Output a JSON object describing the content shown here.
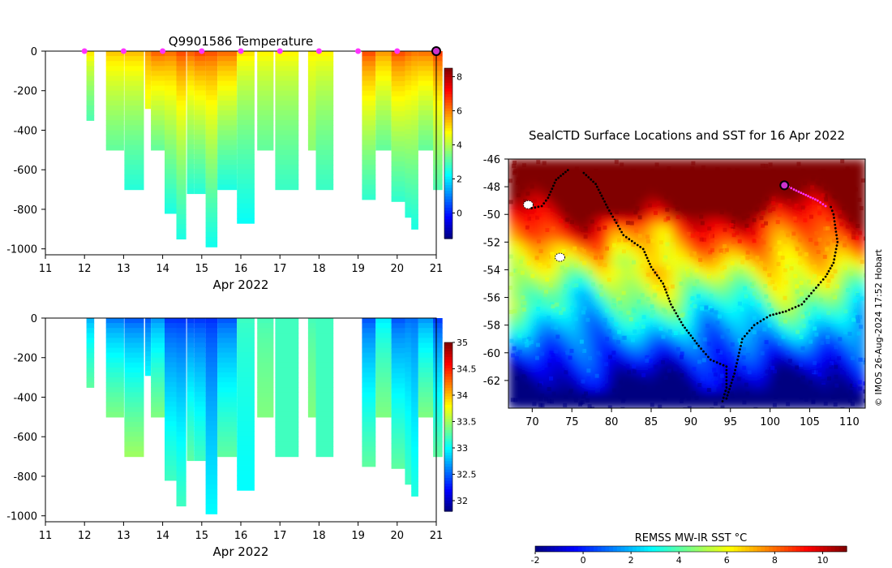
{
  "chart_data": [
    {
      "id": "temperature",
      "type": "heatmap",
      "title": "Q9901586  Temperature",
      "xlabel": "Apr 2022",
      "xlim": [
        11,
        21
      ],
      "ylim": [
        -1030,
        0
      ],
      "x_ticks": [
        "11",
        "12",
        "13",
        "14",
        "15",
        "16",
        "17",
        "18",
        "19",
        "20",
        "21"
      ],
      "y_ticks": [
        "0",
        "-200",
        "-400",
        "-600",
        "-800",
        "-1000"
      ],
      "y_tick_values": [
        0,
        -200,
        -400,
        -600,
        -800,
        -1000
      ],
      "colorbar": {
        "min": -1.5,
        "max": 8.5,
        "ticks": [
          "0",
          "2",
          "4",
          "6",
          "8"
        ],
        "tick_values": [
          0,
          2,
          4,
          6,
          8
        ]
      },
      "surfacing_days": [
        12,
        13,
        14,
        15,
        16,
        17,
        18,
        19,
        20
      ],
      "profiles": [
        {
          "x": 12.05,
          "w": 0.2,
          "depth": 350,
          "t_top": 5.2,
          "t_bot": 3.0
        },
        {
          "x": 12.55,
          "w": 0.46,
          "depth": 500,
          "t_top": 5.5,
          "t_bot": 3.2
        },
        {
          "x": 13.02,
          "w": 0.5,
          "depth": 700,
          "t_top": 5.6,
          "t_bot": 2.6
        },
        {
          "x": 13.55,
          "w": 0.15,
          "depth": 290,
          "t_top": 6.0,
          "t_bot": 4.5
        },
        {
          "x": 13.7,
          "w": 0.4,
          "depth": 500,
          "t_top": 6.6,
          "t_bot": 3.2
        },
        {
          "x": 14.05,
          "w": 0.35,
          "depth": 820,
          "t_top": 6.4,
          "t_bot": 2.5
        },
        {
          "x": 14.35,
          "w": 0.25,
          "depth": 950,
          "t_top": 6.8,
          "t_bot": 2.5
        },
        {
          "x": 14.62,
          "w": 0.18,
          "depth": 720,
          "t_top": 6.6,
          "t_bot": 2.6
        },
        {
          "x": 14.8,
          "w": 0.3,
          "depth": 720,
          "t_top": 6.9,
          "t_bot": 2.6
        },
        {
          "x": 15.1,
          "w": 0.3,
          "depth": 990,
          "t_top": 6.7,
          "t_bot": 2.4
        },
        {
          "x": 15.4,
          "w": 0.5,
          "depth": 700,
          "t_top": 6.5,
          "t_bot": 2.5
        },
        {
          "x": 15.9,
          "w": 0.45,
          "depth": 870,
          "t_top": 5.2,
          "t_bot": 2.3
        },
        {
          "x": 16.42,
          "w": 0.42,
          "depth": 500,
          "t_top": 5.0,
          "t_bot": 3.2
        },
        {
          "x": 16.88,
          "w": 0.6,
          "depth": 700,
          "t_top": 5.0,
          "t_bot": 2.8
        },
        {
          "x": 17.72,
          "w": 0.2,
          "depth": 500,
          "t_top": 5.0,
          "t_bot": 3.6
        },
        {
          "x": 17.92,
          "w": 0.45,
          "depth": 700,
          "t_top": 5.0,
          "t_bot": 2.8
        },
        {
          "x": 19.1,
          "w": 0.35,
          "depth": 750,
          "t_top": 6.8,
          "t_bot": 2.7
        },
        {
          "x": 19.45,
          "w": 0.4,
          "depth": 500,
          "t_top": 6.0,
          "t_bot": 3.2
        },
        {
          "x": 19.85,
          "w": 0.35,
          "depth": 760,
          "t_top": 6.8,
          "t_bot": 2.7
        },
        {
          "x": 20.2,
          "w": 0.18,
          "depth": 840,
          "t_top": 6.5,
          "t_bot": 2.6
        },
        {
          "x": 20.36,
          "w": 0.18,
          "depth": 900,
          "t_top": 6.3,
          "t_bot": 2.5
        },
        {
          "x": 20.54,
          "w": 0.4,
          "depth": 500,
          "t_top": 6.4,
          "t_bot": 3.2
        },
        {
          "x": 20.92,
          "w": 0.24,
          "depth": 700,
          "t_top": 7.0,
          "t_bot": 3.0
        }
      ]
    },
    {
      "id": "salinity",
      "type": "heatmap",
      "title": "",
      "xlabel": "Apr 2022",
      "xlim": [
        11,
        21
      ],
      "ylim": [
        -1030,
        0
      ],
      "x_ticks": [
        "11",
        "12",
        "13",
        "14",
        "15",
        "16",
        "17",
        "18",
        "19",
        "20",
        "21"
      ],
      "y_ticks": [
        "0",
        "-200",
        "-400",
        "-600",
        "-800",
        "-1000"
      ],
      "y_tick_values": [
        0,
        -200,
        -400,
        -600,
        -800,
        -1000
      ],
      "colorbar": {
        "min": 31.8,
        "max": 35.0,
        "ticks": [
          "32",
          "32.5",
          "33",
          "33.5",
          "34",
          "34.5",
          "35"
        ],
        "tick_values": [
          32,
          32.5,
          33,
          33.5,
          34,
          34.5,
          35
        ]
      },
      "profiles": [
        {
          "x": 12.05,
          "w": 0.2,
          "depth": 350,
          "t_top": 32.7,
          "t_bot": 33.3
        },
        {
          "x": 12.55,
          "w": 0.46,
          "depth": 500,
          "t_top": 32.5,
          "t_bot": 33.4
        },
        {
          "x": 13.02,
          "w": 0.5,
          "depth": 700,
          "t_top": 32.4,
          "t_bot": 33.5
        },
        {
          "x": 13.55,
          "w": 0.15,
          "depth": 290,
          "t_top": 32.4,
          "t_bot": 33.0
        },
        {
          "x": 13.7,
          "w": 0.4,
          "depth": 500,
          "t_top": 32.6,
          "t_bot": 33.4
        },
        {
          "x": 14.05,
          "w": 0.35,
          "depth": 820,
          "t_top": 32.3,
          "t_bot": 33.2
        },
        {
          "x": 14.35,
          "w": 0.25,
          "depth": 950,
          "t_top": 32.3,
          "t_bot": 33.2
        },
        {
          "x": 14.62,
          "w": 0.18,
          "depth": 720,
          "t_top": 32.3,
          "t_bot": 33.3
        },
        {
          "x": 14.8,
          "w": 0.3,
          "depth": 720,
          "t_top": 32.3,
          "t_bot": 33.2
        },
        {
          "x": 15.1,
          "w": 0.3,
          "depth": 990,
          "t_top": 32.3,
          "t_bot": 33.0
        },
        {
          "x": 15.4,
          "w": 0.5,
          "depth": 700,
          "t_top": 32.4,
          "t_bot": 33.3
        },
        {
          "x": 15.9,
          "w": 0.45,
          "depth": 870,
          "t_top": 33.2,
          "t_bot": 33.0
        },
        {
          "x": 16.42,
          "w": 0.42,
          "depth": 500,
          "t_top": 33.2,
          "t_bot": 33.4
        },
        {
          "x": 16.88,
          "w": 0.6,
          "depth": 700,
          "t_top": 33.2,
          "t_bot": 33.2
        },
        {
          "x": 17.72,
          "w": 0.2,
          "depth": 500,
          "t_top": 33.2,
          "t_bot": 33.4
        },
        {
          "x": 17.92,
          "w": 0.45,
          "depth": 700,
          "t_top": 33.2,
          "t_bot": 33.2
        },
        {
          "x": 19.1,
          "w": 0.35,
          "depth": 750,
          "t_top": 32.4,
          "t_bot": 33.3
        },
        {
          "x": 19.45,
          "w": 0.4,
          "depth": 500,
          "t_top": 32.9,
          "t_bot": 33.4
        },
        {
          "x": 19.85,
          "w": 0.35,
          "depth": 760,
          "t_top": 32.4,
          "t_bot": 33.3
        },
        {
          "x": 20.2,
          "w": 0.18,
          "depth": 840,
          "t_top": 32.5,
          "t_bot": 33.2
        },
        {
          "x": 20.36,
          "w": 0.18,
          "depth": 900,
          "t_top": 32.5,
          "t_bot": 33.1
        },
        {
          "x": 20.54,
          "w": 0.4,
          "depth": 500,
          "t_top": 32.6,
          "t_bot": 33.4
        },
        {
          "x": 20.92,
          "w": 0.24,
          "depth": 700,
          "t_top": 32.3,
          "t_bot": 33.3
        }
      ]
    },
    {
      "id": "sst_map",
      "type": "heatmap",
      "title": "SealCTD Surface Locations and SST for 16 Apr 2022",
      "xlim": [
        67,
        112
      ],
      "ylim": [
        -64,
        -46
      ],
      "x_ticks": [
        "70",
        "75",
        "80",
        "85",
        "90",
        "95",
        "100",
        "105",
        "110"
      ],
      "x_tick_values": [
        70,
        75,
        80,
        85,
        90,
        95,
        100,
        105,
        110
      ],
      "y_ticks": [
        "-46",
        "-48",
        "-50",
        "-52",
        "-54",
        "-56",
        "-58",
        "-60",
        "-62"
      ],
      "y_tick_values": [
        -46,
        -48,
        -50,
        -52,
        -54,
        -56,
        -58,
        -60,
        -62
      ],
      "colorbar_label": "REMSS MW-IR SST °C",
      "colorbar": {
        "min": -2,
        "max": 11,
        "ticks": [
          "-2",
          "0",
          "2",
          "4",
          "6",
          "8",
          "10"
        ],
        "tick_values": [
          -2,
          0,
          2,
          4,
          6,
          8,
          10
        ]
      },
      "credit": "© IMOS 26-Aug-2024 17:52 Hobart",
      "track": [
        [
          74.5,
          -46.8
        ],
        [
          73.0,
          -47.5
        ],
        [
          72.0,
          -48.8
        ],
        [
          71.2,
          -49.4
        ],
        [
          69.5,
          -49.6
        ],
        [
          76.5,
          -47.0
        ],
        [
          78.0,
          -47.8
        ],
        [
          79.5,
          -49.5
        ],
        [
          81.5,
          -51.5
        ],
        [
          84.0,
          -52.5
        ],
        [
          85.0,
          -53.8
        ],
        [
          86.5,
          -55.0
        ],
        [
          87.5,
          -56.5
        ],
        [
          89.0,
          -58.0
        ],
        [
          91.0,
          -59.5
        ],
        [
          92.5,
          -60.5
        ],
        [
          94.5,
          -61.0
        ],
        [
          94.5,
          -62.5
        ],
        [
          94.0,
          -63.5
        ],
        [
          94.5,
          -63.3
        ],
        [
          95.5,
          -61.5
        ],
        [
          96.5,
          -59.0
        ],
        [
          98.0,
          -58.0
        ],
        [
          100.0,
          -57.3
        ],
        [
          102.0,
          -57.0
        ],
        [
          104.0,
          -56.5
        ],
        [
          105.5,
          -55.5
        ],
        [
          107.0,
          -54.5
        ],
        [
          108.0,
          -53.5
        ],
        [
          108.5,
          -52.0
        ],
        [
          108.0,
          -50.0
        ],
        [
          107.5,
          -49.2
        ]
      ],
      "recent_track": [
        [
          107.0,
          -49.4
        ],
        [
          106.0,
          -49.0
        ],
        [
          104.5,
          -48.6
        ],
        [
          103.0,
          -48.2
        ],
        [
          102.0,
          -47.9
        ]
      ],
      "current_position": [
        101.8,
        -47.9
      ],
      "islands": [
        [
          69.5,
          -49.3
        ],
        [
          73.5,
          -53.1
        ]
      ]
    }
  ]
}
